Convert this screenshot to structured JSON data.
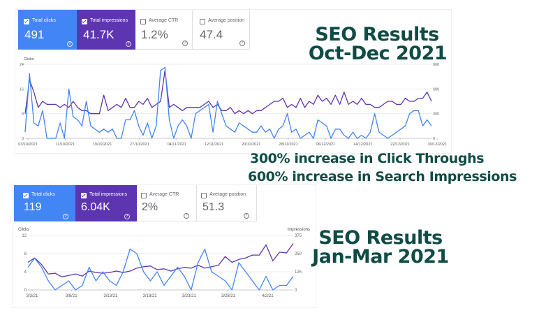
{
  "report_top": {
    "cards": [
      {
        "label": "Total clicks",
        "value": "491",
        "checked": true,
        "color": "#4285f4"
      },
      {
        "label": "Total impressions",
        "value": "41.7K",
        "checked": true,
        "color": "#5e35b1"
      },
      {
        "label": "Average CTR",
        "value": "1.2%",
        "checked": false
      },
      {
        "label": "Average position",
        "value": "47.4",
        "checked": false
      }
    ],
    "help_glyph": "?"
  },
  "report_bottom": {
    "cards": [
      {
        "label": "Total clicks",
        "value": "119",
        "checked": true,
        "color": "#4285f4"
      },
      {
        "label": "Total impressions",
        "value": "6.04K",
        "checked": true,
        "color": "#5e35b1"
      },
      {
        "label": "Average CTR",
        "value": "2%",
        "checked": false
      },
      {
        "label": "Average position",
        "value": "51.3",
        "checked": false
      }
    ],
    "help_glyph": "?"
  },
  "captions": {
    "top_line1": "SEO Results",
    "top_line2": "Oct-Dec 2021",
    "increase_clicks": "300% increase in Click Throughs",
    "increase_impressions": "600% increase in Search Impressions",
    "bottom_line1": "SEO Results",
    "bottom_line2": "Jan-Mar 2021"
  },
  "chart_data": [
    {
      "type": "line",
      "left_axis_label": "Clicks",
      "right_axis_label": "",
      "y_left_ticks": [
        "24",
        "16",
        "8",
        "0"
      ],
      "y_right_ticks": [
        "900",
        "600",
        "300",
        "0"
      ],
      "ylim_left": [
        0,
        24
      ],
      "ylim_right": [
        0,
        900
      ],
      "x_tick_labels": [
        "03/10/2021",
        "11/10/2021",
        "19/10/2021",
        "27/10/2021",
        "04/11/2021",
        "12/11/2021",
        "20/11/2021",
        "28/11/2021",
        "06/12/2021",
        "14/12/2021",
        "22/12/2021",
        "30/12/2021"
      ],
      "grid": true,
      "series": [
        {
          "name": "Total clicks",
          "axis": "left",
          "color": "#4285f4",
          "values": [
            2,
            21,
            5,
            4,
            9,
            0,
            0,
            0,
            5,
            0,
            16,
            7,
            6,
            4,
            12,
            4,
            3,
            2,
            3,
            2,
            3,
            0,
            0,
            6,
            6,
            9,
            4,
            1,
            5,
            0,
            4,
            22,
            23,
            6,
            0,
            4,
            6,
            4,
            0,
            8,
            9,
            10,
            11,
            2,
            12,
            8,
            4,
            3,
            2,
            5,
            4,
            3,
            2,
            2,
            4,
            2,
            3,
            0,
            3,
            4,
            8,
            2,
            3,
            0,
            1,
            2,
            0,
            6,
            5,
            4,
            0,
            3,
            3,
            1,
            0,
            2,
            0,
            1,
            0,
            2,
            8,
            2,
            1,
            0,
            1,
            2,
            3,
            4,
            8,
            9,
            9,
            4,
            6,
            4
          ]
        },
        {
          "name": "Total impressions",
          "axis": "left",
          "color": "#5e35b1",
          "values": [
            8,
            19,
            15,
            10,
            12,
            11,
            11,
            11,
            10,
            11,
            10,
            12,
            10,
            9,
            9,
            8,
            8,
            8,
            14,
            9,
            10,
            11,
            10,
            13,
            10,
            10,
            12,
            11,
            13,
            10,
            11,
            12,
            22,
            10,
            11,
            10,
            9,
            10,
            10,
            10,
            10,
            11,
            12,
            10,
            11,
            9,
            9,
            10,
            8,
            9,
            8,
            9,
            8,
            9,
            9,
            10,
            11,
            12,
            12,
            13,
            10,
            11,
            10,
            13,
            10,
            12,
            11,
            14,
            12,
            13,
            11,
            14,
            11,
            15,
            11,
            12,
            11,
            13,
            11,
            11,
            10,
            10,
            11,
            12,
            12,
            11,
            11,
            13,
            12,
            12,
            13,
            13,
            15,
            12
          ]
        }
      ]
    },
    {
      "type": "line",
      "left_axis_label": "Clicks",
      "right_axis_label": "Impressions",
      "y_left_ticks": [
        "12",
        "8",
        "4",
        "0"
      ],
      "y_right_ticks": [
        "375",
        "250",
        "125",
        "0"
      ],
      "ylim_left": [
        0,
        12
      ],
      "ylim_right": [
        0,
        375
      ],
      "x_tick_labels": [
        "3/3/21",
        "3/8/21",
        "3/13/21",
        "3/18/21",
        "3/23/21",
        "3/28/21",
        "4/2/21"
      ],
      "grid": true,
      "series": [
        {
          "name": "Total clicks",
          "axis": "left",
          "color": "#4285f4",
          "values": [
            5,
            7,
            5,
            2,
            0,
            1,
            2,
            0,
            1,
            5,
            2,
            4,
            2,
            1,
            4,
            9,
            8,
            4,
            2,
            4,
            1,
            3,
            5,
            3,
            0,
            6,
            9,
            4,
            3,
            2,
            0,
            6,
            4,
            2,
            0,
            3,
            0,
            1,
            1,
            3
          ]
        },
        {
          "name": "Total impressions",
          "axis": "right",
          "color": "#5e35b1",
          "values": [
            190,
            220,
            175,
            110,
            115,
            90,
            100,
            110,
            95,
            130,
            120,
            115,
            120,
            130,
            120,
            130,
            150,
            160,
            165,
            140,
            145,
            130,
            145,
            155,
            150,
            170,
            150,
            160,
            170,
            230,
            190,
            210,
            220,
            240,
            240,
            310,
            200,
            260,
            255,
            320
          ]
        }
      ]
    }
  ]
}
